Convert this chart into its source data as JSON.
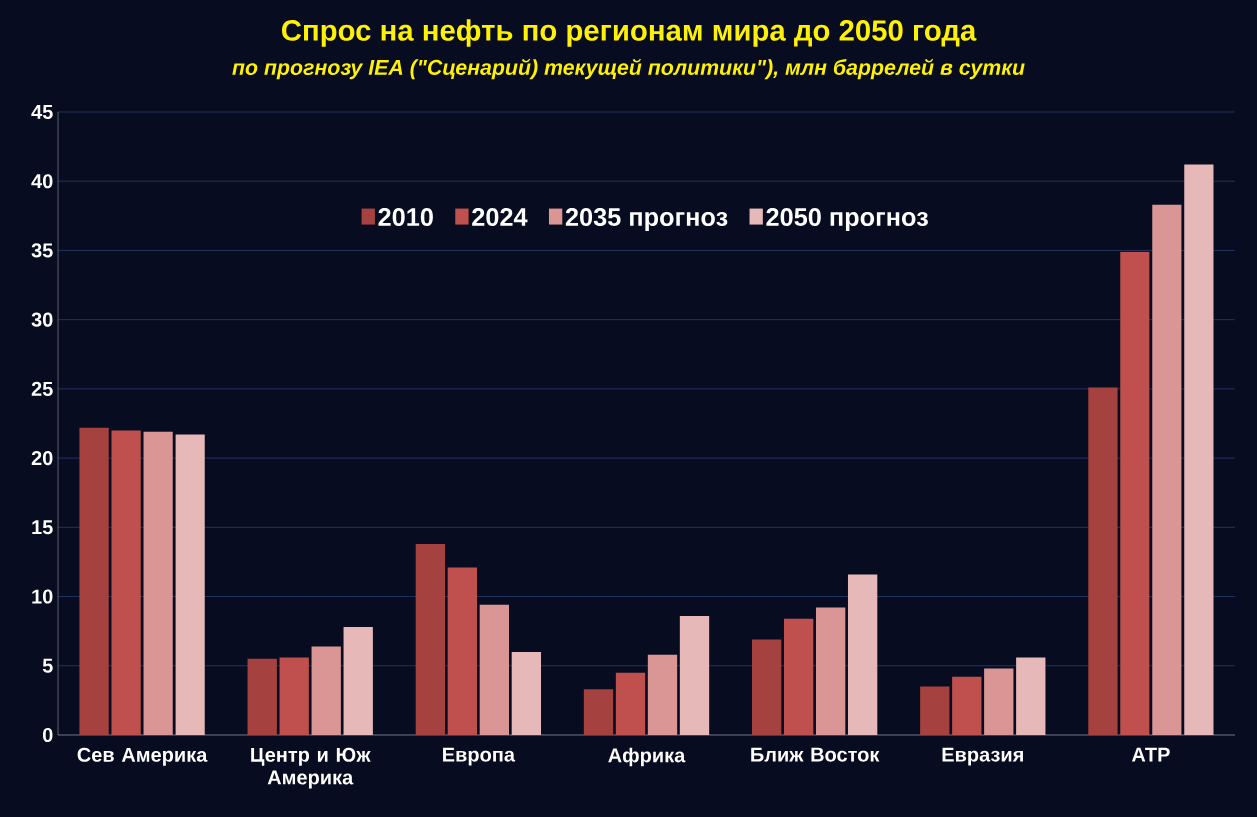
{
  "chart_data": {
    "type": "bar",
    "title": "Спрос на нефть по регионам мира до 2050 года",
    "subtitle": "по прогнозу IEA (\"Сценарий) текущей политики\"), млн баррелей в сутки",
    "categories": [
      "Сев Америка",
      "Центр и Юж Америка",
      "Европа",
      "Африка",
      "Ближ Восток",
      "Евразия",
      "АТР"
    ],
    "series": [
      {
        "name": "2010",
        "color": "#a5413f",
        "values": [
          22.2,
          5.5,
          13.8,
          3.3,
          6.9,
          3.5,
          25.1
        ]
      },
      {
        "name": "2024",
        "color": "#c0504d",
        "values": [
          22.0,
          5.6,
          12.1,
          4.5,
          8.4,
          4.2,
          34.9
        ]
      },
      {
        "name": "2035 прогноз",
        "color": "#d99694",
        "values": [
          21.9,
          6.4,
          9.4,
          5.8,
          9.2,
          4.8,
          38.3
        ]
      },
      {
        "name": "2050 прогноз",
        "color": "#e6b9b8",
        "values": [
          21.7,
          7.8,
          6.0,
          8.6,
          11.6,
          5.6,
          41.2
        ]
      }
    ],
    "ylim": [
      0,
      45
    ],
    "yticks": [
      0,
      5,
      10,
      15,
      20,
      25,
      30,
      35,
      40,
      45
    ],
    "grid": "y",
    "legend": "top"
  }
}
